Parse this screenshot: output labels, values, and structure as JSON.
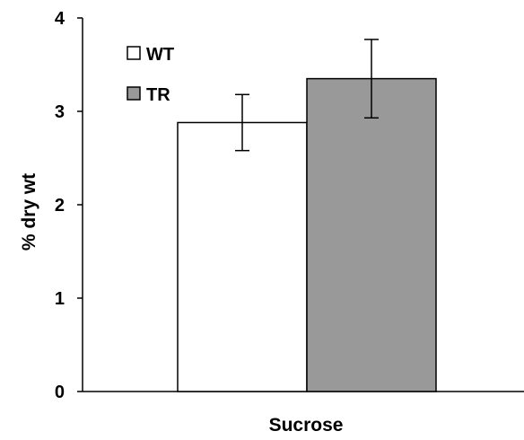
{
  "chart_data": {
    "type": "bar",
    "categories": [
      "Sucrose"
    ],
    "series": [
      {
        "name": "WT",
        "values": [
          2.88
        ],
        "error": [
          0.3
        ],
        "color": "#ffffff"
      },
      {
        "name": "TR",
        "values": [
          3.35
        ],
        "error": [
          0.42
        ],
        "color": "#999999"
      }
    ],
    "title": "",
    "xlabel": "Sucrose",
    "ylabel": "% dry wt",
    "ylim": [
      0,
      4
    ],
    "yticks": [
      "0",
      "1",
      "2",
      "3",
      "4"
    ],
    "grid": false,
    "legend_position": "top-left"
  }
}
